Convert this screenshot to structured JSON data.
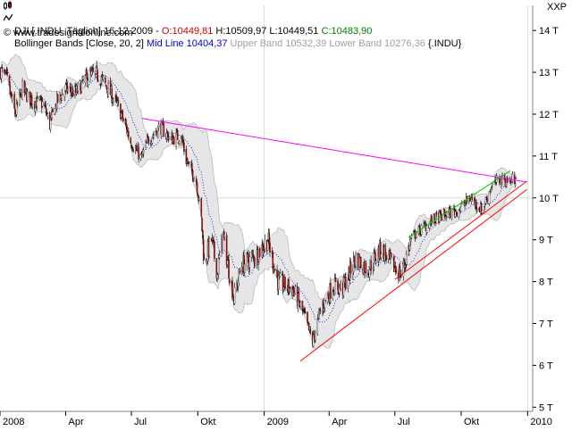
{
  "header": {
    "line1": {
      "prefix": "DJI [.INDU  Täglich] 16.12.2009 - ",
      "open": "O:10449,81",
      "high": " H:10509,97",
      "low": " L:10449,51",
      "close": " C:10483,90"
    },
    "line2": {
      "indicator": "Bollinger Bands [Close, 20, 2]",
      "mid": " Mid Line 10404,37",
      "upper": " Upper Band 10532,39",
      "lower": " Lower Band 10276,36",
      "symbol": " {.INDU}"
    },
    "line3": "© www.tradesignalonline.com",
    "corner": "XXP"
  },
  "colors": {
    "up_candle": "#ffffff",
    "down_candle": "#cc0000",
    "wick": "#000000",
    "band_fill": "#e6e6e6",
    "band_edge": "#b4b4b4",
    "mid_line": "#0000cc",
    "resistance": "#ff00ff",
    "support": "#ff0000",
    "channel": "#00cc00",
    "grid": "#c8e6c8"
  },
  "chart_data": {
    "type": "candlestick",
    "symbol": "DJI [.INDU]",
    "period": "Täglich",
    "x_range": [
      "2008-01-02",
      "2009-12-16"
    ],
    "ylim": [
      4900,
      14600
    ],
    "y_ticks": [
      5000,
      6000,
      7000,
      8000,
      9000,
      10000,
      11000,
      12000,
      13000,
      14000
    ],
    "y_tick_labels": [
      "5 T",
      "6 T",
      "7 T",
      "8 T",
      "9 T",
      "10 T",
      "11 T",
      "12 T",
      "13 T",
      "14 T"
    ],
    "x_ticks": [
      "2008",
      "Apr",
      "Jul",
      "Okt",
      "2009",
      "Apr",
      "Jul",
      "Okt",
      "2010"
    ],
    "x_tick_dates": [
      "2008-01-01",
      "2008-04-01",
      "2008-07-01",
      "2008-10-01",
      "2009-01-01",
      "2009-04-01",
      "2009-07-01",
      "2009-10-01",
      "2010-01-01"
    ],
    "gridlines_x": [
      "2009-01-01",
      "2010-01-01"
    ],
    "gridlines_y": [
      10000
    ],
    "last_bar": {
      "date": "2009-12-16",
      "open": 10449.81,
      "high": 10509.97,
      "low": 10449.51,
      "close": 10483.9
    },
    "bollinger_last": {
      "mid": 10404.37,
      "upper": 10532.39,
      "lower": 10276.36
    },
    "close_series": [
      [
        "2008-01-02",
        13040
      ],
      [
        "2008-01-10",
        12850
      ],
      [
        "2008-01-22",
        12000
      ],
      [
        "2008-02-01",
        12600
      ],
      [
        "2008-02-15",
        12300
      ],
      [
        "2008-03-01",
        12250
      ],
      [
        "2008-03-10",
        11750
      ],
      [
        "2008-03-20",
        12300
      ],
      [
        "2008-04-01",
        12600
      ],
      [
        "2008-04-15",
        12500
      ],
      [
        "2008-05-01",
        12900
      ],
      [
        "2008-05-15",
        12950
      ],
      [
        "2008-05-30",
        12600
      ],
      [
        "2008-06-15",
        12100
      ],
      [
        "2008-06-30",
        11350
      ],
      [
        "2008-07-15",
        10950
      ],
      [
        "2008-07-25",
        11400
      ],
      [
        "2008-08-10",
        11700
      ],
      [
        "2008-08-25",
        11400
      ],
      [
        "2008-09-08",
        11500
      ],
      [
        "2008-09-15",
        10900
      ],
      [
        "2008-09-29",
        10400
      ],
      [
        "2008-10-06",
        9500
      ],
      [
        "2008-10-10",
        8450
      ],
      [
        "2008-10-20",
        9000
      ],
      [
        "2008-10-28",
        8200
      ],
      [
        "2008-11-05",
        9100
      ],
      [
        "2008-11-20",
        7600
      ],
      [
        "2008-12-01",
        8400
      ],
      [
        "2008-12-20",
        8600
      ],
      [
        "2009-01-06",
        9000
      ],
      [
        "2009-01-20",
        8000
      ],
      [
        "2009-02-10",
        7800
      ],
      [
        "2009-02-25",
        7200
      ],
      [
        "2009-03-09",
        6550
      ],
      [
        "2009-03-20",
        7300
      ],
      [
        "2009-04-06",
        7900
      ],
      [
        "2009-04-20",
        7850
      ],
      [
        "2009-05-08",
        8550
      ],
      [
        "2009-05-25",
        8300
      ],
      [
        "2009-06-12",
        8800
      ],
      [
        "2009-06-25",
        8450
      ],
      [
        "2009-07-10",
        8150
      ],
      [
        "2009-07-24",
        9050
      ],
      [
        "2009-08-10",
        9300
      ],
      [
        "2009-08-25",
        9500
      ],
      [
        "2009-09-10",
        9600
      ],
      [
        "2009-09-25",
        9700
      ],
      [
        "2009-10-14",
        10000
      ],
      [
        "2009-10-30",
        9700
      ],
      [
        "2009-11-12",
        10300
      ],
      [
        "2009-11-25",
        10450
      ],
      [
        "2009-12-07",
        10400
      ],
      [
        "2009-12-16",
        10480
      ]
    ],
    "trendlines": [
      {
        "name": "resistance",
        "from": [
          "2008-07-15",
          11900
        ],
        "to": [
          "2009-12-31",
          10380
        ]
      },
      {
        "name": "support-long",
        "from": [
          "2009-02-20",
          6100
        ],
        "to": [
          "2009-12-31",
          10200
        ]
      },
      {
        "name": "support-short",
        "from": [
          "2009-07-01",
          8050
        ],
        "to": [
          "2009-12-31",
          10400
        ]
      },
      {
        "name": "channel-top",
        "from": [
          "2009-07-20",
          9050
        ],
        "to": [
          "2009-12-08",
          10650
        ]
      }
    ]
  }
}
